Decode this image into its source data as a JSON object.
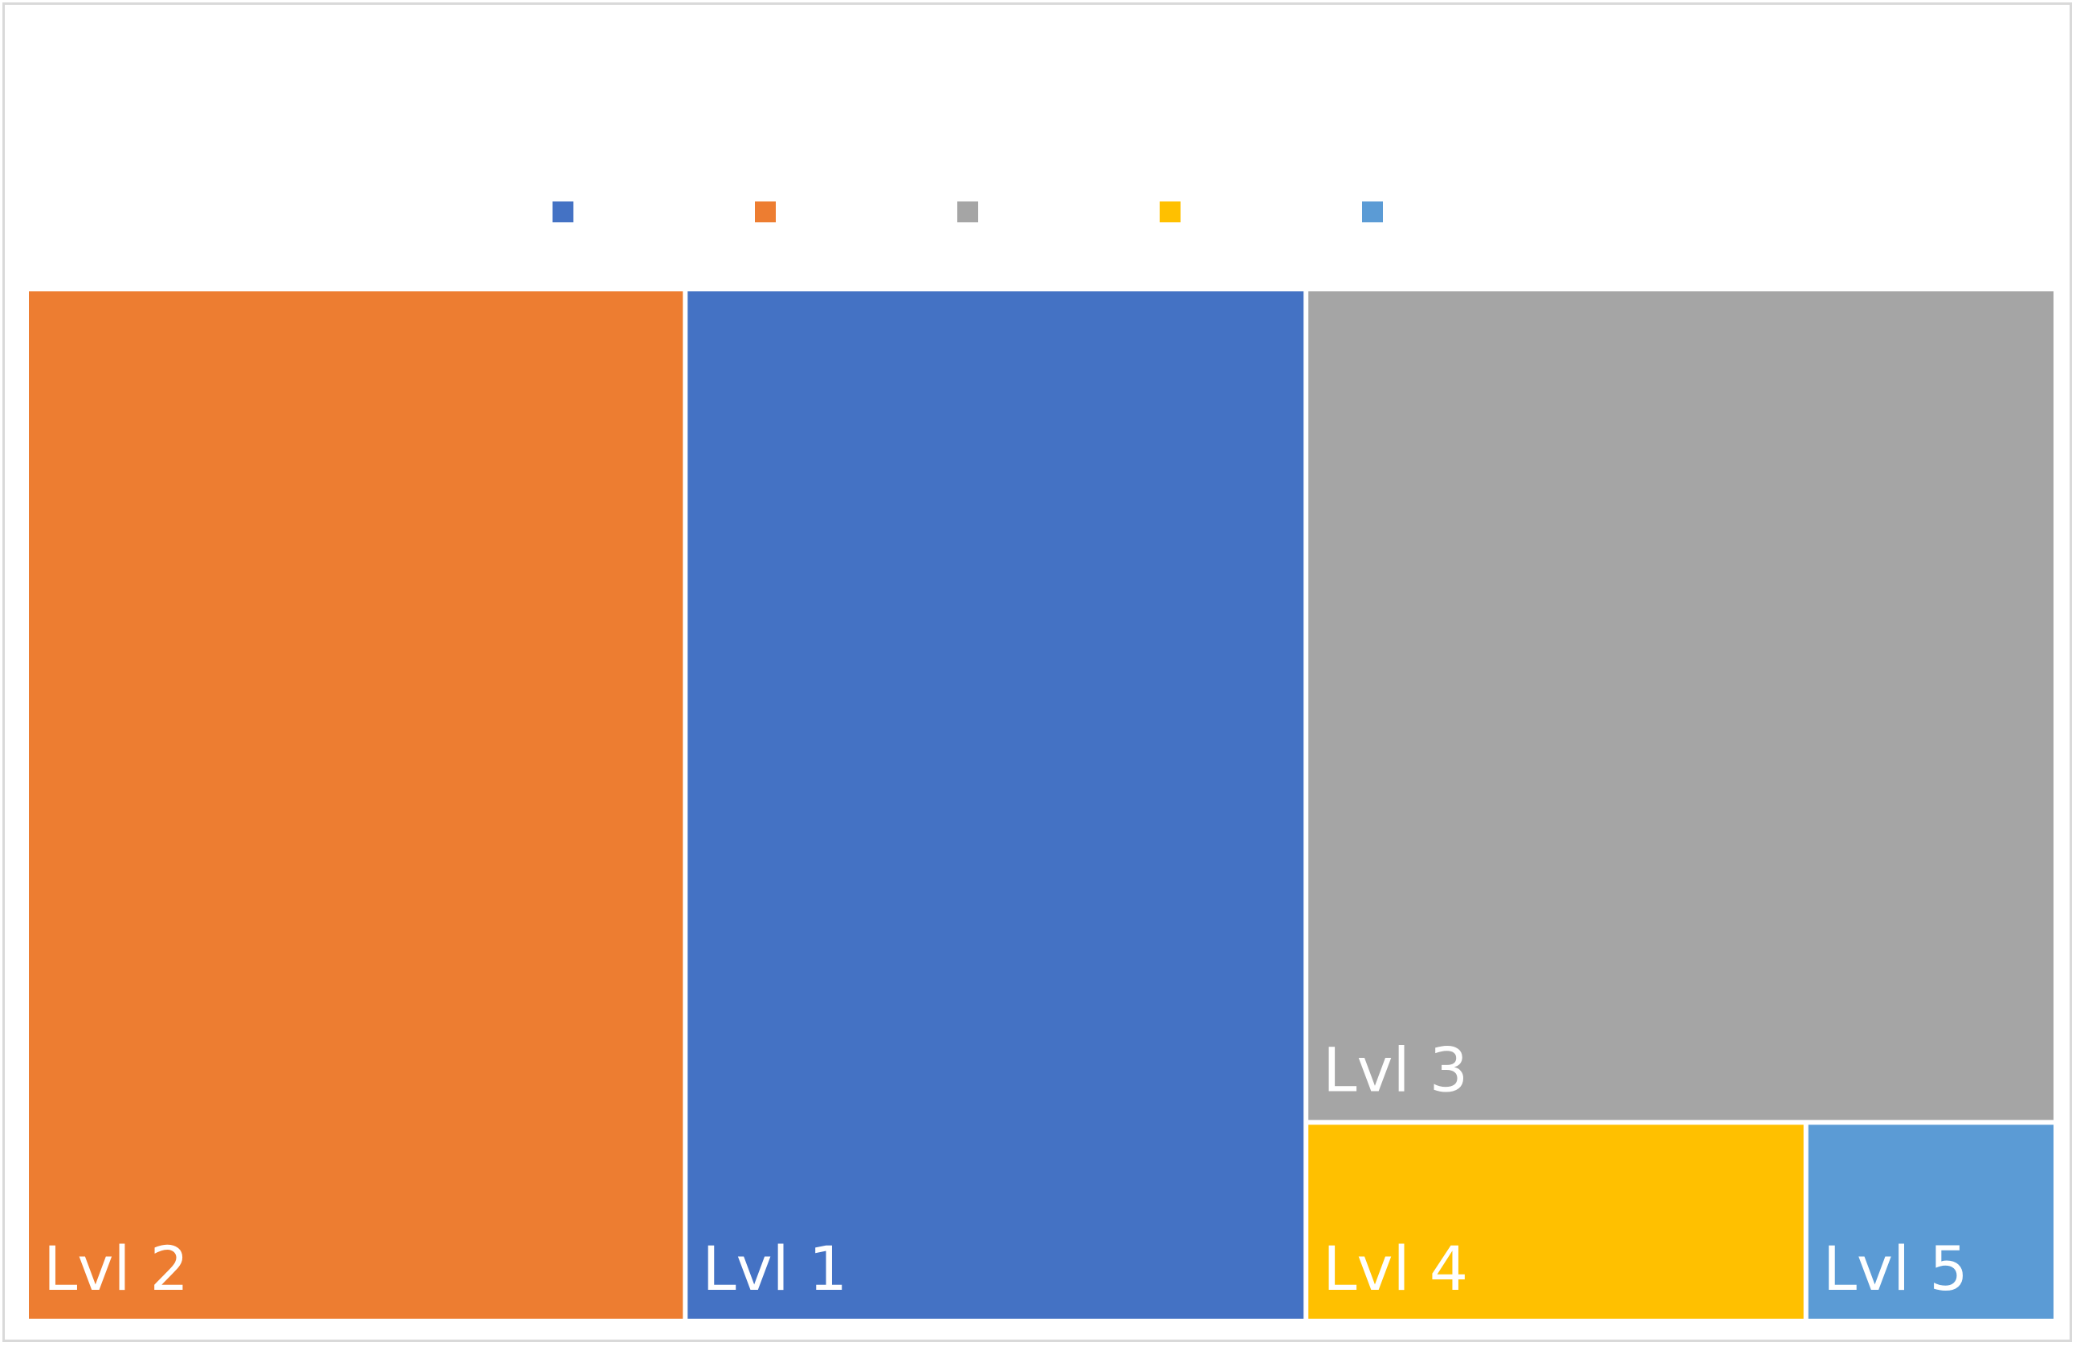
{
  "chart_data": {
    "type": "treemap",
    "title": "",
    "legend": {
      "placement": "top",
      "entries": [
        {
          "label": "",
          "color": "#4472c4"
        },
        {
          "label": "",
          "color": "#ed7d31"
        },
        {
          "label": "",
          "color": "#a5a5a5"
        },
        {
          "label": "",
          "color": "#ffc000"
        },
        {
          "label": "",
          "color": "#5b9bd5"
        }
      ]
    },
    "tiles": [
      {
        "label": "Lvl 2",
        "value": 26,
        "color": "#ed7d31"
      },
      {
        "label": "Lvl 1",
        "value": 24.5,
        "color": "#4472c4"
      },
      {
        "label": "Lvl 3",
        "value": 23.9,
        "color": "#a5a5a5"
      },
      {
        "label": "Lvl 4",
        "value": 3.8,
        "color": "#ffc000"
      },
      {
        "label": "Lvl 5",
        "value": 1.9,
        "color": "#5b9bd5"
      }
    ]
  }
}
